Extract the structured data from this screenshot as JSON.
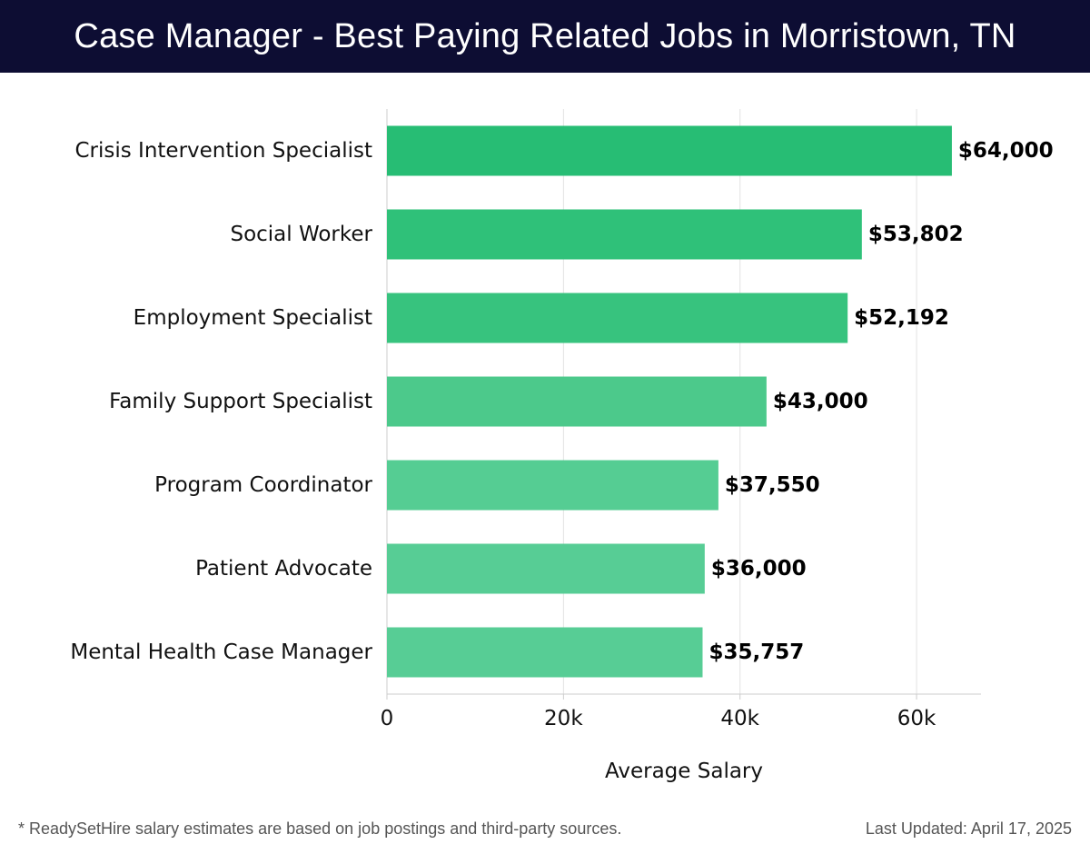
{
  "header": {
    "title": "Case Manager - Best Paying Related Jobs in Morristown, TN"
  },
  "chart_data": {
    "type": "bar",
    "orientation": "horizontal",
    "categories": [
      "Crisis Intervention Specialist",
      "Social Worker",
      "Employment Specialist",
      "Family Support Specialist",
      "Program Coordinator",
      "Patient Advocate",
      "Mental Health Case Manager"
    ],
    "values": [
      64000,
      53802,
      52192,
      43000,
      37550,
      36000,
      35757
    ],
    "value_labels": [
      "$64,000",
      "$53,802",
      "$52,192",
      "$43,000",
      "$37,550",
      "$36,000",
      "$35,757"
    ],
    "xlabel": "Average Salary",
    "ylabel": "",
    "xlim": [
      0,
      67300
    ],
    "xticks": [
      0,
      20000,
      40000,
      60000
    ],
    "xtick_labels": [
      "0",
      "20k",
      "40k",
      "60k"
    ],
    "grid": "vertical",
    "bar_colors": [
      "#27bd74",
      "#2fc179",
      "#37c37e",
      "#4cc98b",
      "#55cd93",
      "#57cd95",
      "#57cd95"
    ],
    "grid_color": "#e2e2e2",
    "axis_color": "#cccccc"
  },
  "footer": {
    "note": "* ReadySetHire salary estimates are based on job postings and third-party sources.",
    "updated": "Last Updated: April 17, 2025"
  }
}
